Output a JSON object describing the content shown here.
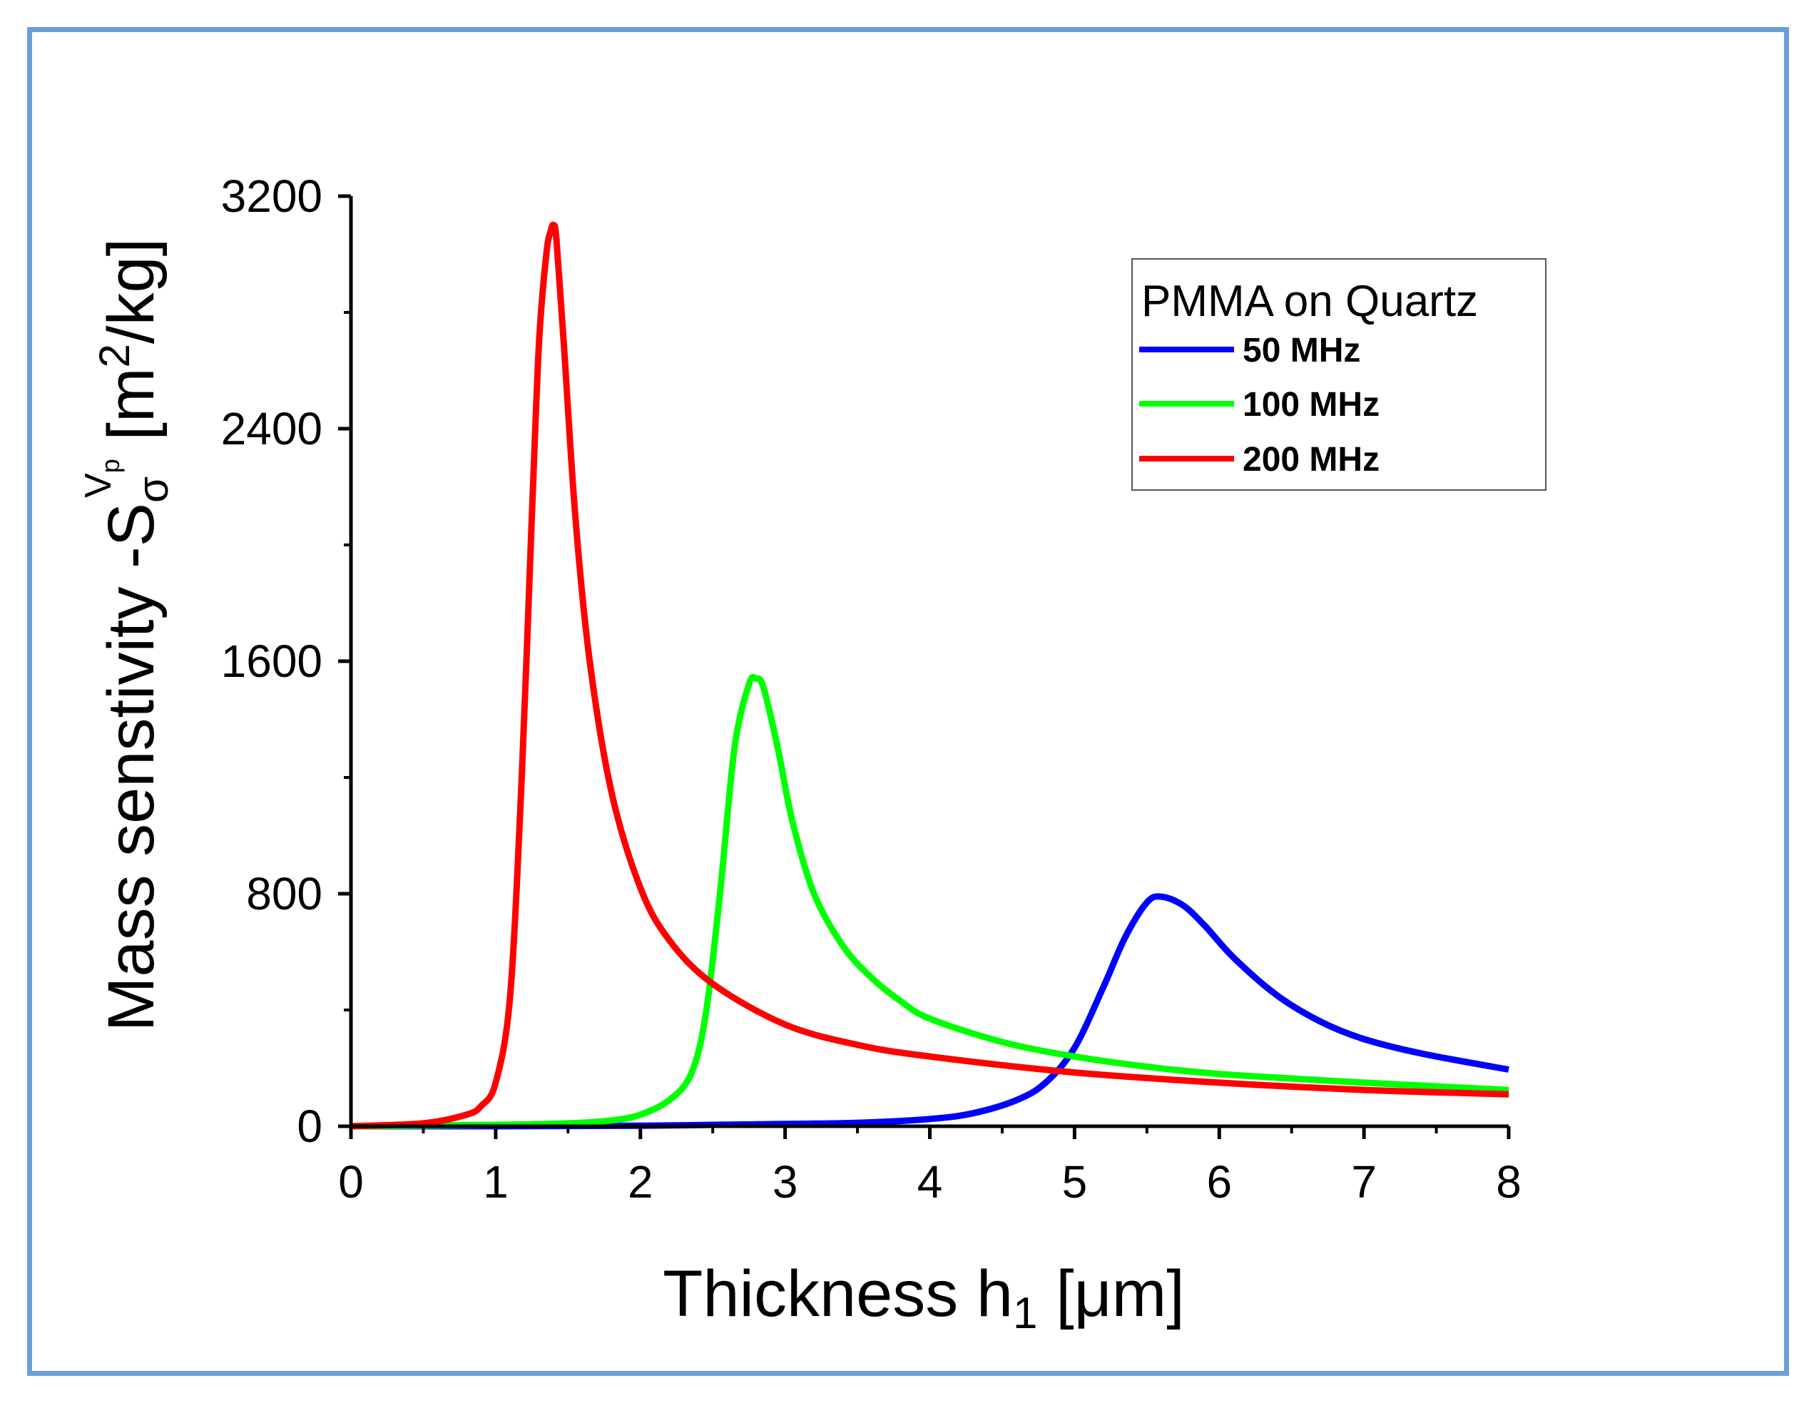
{
  "chart_data": {
    "type": "line",
    "title": "",
    "xlabel": {
      "main": "Thickness h",
      "sub": "1",
      "unit": " [μm]"
    },
    "ylabel": {
      "prefix": "Mass senstivity  -S",
      "sub": "σ",
      "sup_v": "V",
      "sup_p": "p",
      "unit_open": " [m",
      "unit_sup": "2",
      "unit_close": "/kg]"
    },
    "xlim": [
      0,
      8
    ],
    "ylim": [
      0,
      3200
    ],
    "x_ticks": [
      0,
      1,
      2,
      3,
      4,
      5,
      6,
      7,
      8
    ],
    "x_tick_labels": [
      "0",
      "1",
      "2",
      "3",
      "4",
      "5",
      "6",
      "7",
      "8"
    ],
    "y_ticks": [
      0,
      800,
      1600,
      2400,
      3200
    ],
    "y_tick_labels": [
      "0",
      "800",
      "1600",
      "2400",
      "3200"
    ],
    "grid": false,
    "legend": {
      "title": "PMMA on Quartz",
      "position": "top-right"
    },
    "series": [
      {
        "name": "50 MHz",
        "color": "#0000ff",
        "x": [
          0,
          1,
          2,
          3,
          3.5,
          4,
          4.3,
          4.6,
          4.8,
          5.0,
          5.2,
          5.35,
          5.5,
          5.6,
          5.75,
          5.9,
          6.1,
          6.4,
          6.7,
          7.0,
          7.4,
          8.0
        ],
        "y": [
          0,
          0,
          2,
          8,
          12,
          25,
          45,
          90,
          150,
          270,
          480,
          650,
          770,
          790,
          760,
          690,
          580,
          450,
          360,
          300,
          250,
          195
        ]
      },
      {
        "name": "100 MHz",
        "color": "#00ff00",
        "x": [
          0,
          1,
          1.5,
          1.8,
          2.0,
          2.2,
          2.35,
          2.45,
          2.55,
          2.65,
          2.75,
          2.8,
          2.85,
          2.95,
          3.05,
          3.2,
          3.4,
          3.6,
          3.8,
          4.0,
          4.5,
          5.0,
          5.5,
          6.0,
          7.0,
          8.0
        ],
        "y": [
          0,
          5,
          10,
          20,
          40,
          90,
          180,
          380,
          800,
          1300,
          1520,
          1540,
          1510,
          1300,
          1050,
          800,
          620,
          510,
          430,
          370,
          290,
          240,
          205,
          180,
          150,
          125
        ]
      },
      {
        "name": "200 MHz",
        "color": "#ff0000",
        "x": [
          0,
          0.5,
          0.8,
          0.9,
          1.0,
          1.1,
          1.18,
          1.25,
          1.3,
          1.35,
          1.38,
          1.4,
          1.42,
          1.47,
          1.55,
          1.65,
          1.8,
          2.0,
          2.2,
          2.5,
          3.0,
          3.5,
          4.0,
          5.0,
          6.0,
          7.0,
          8.0
        ],
        "y": [
          0,
          10,
          40,
          70,
          150,
          450,
          1200,
          2100,
          2700,
          3000,
          3080,
          3100,
          3050,
          2700,
          2100,
          1600,
          1150,
          820,
          640,
          490,
          350,
          280,
          240,
          185,
          150,
          125,
          110
        ]
      }
    ]
  }
}
